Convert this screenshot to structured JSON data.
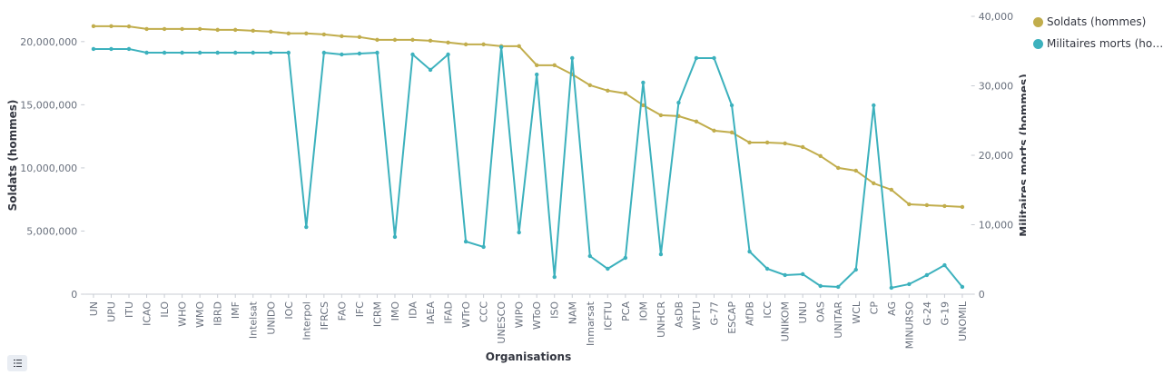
{
  "chart_data": {
    "type": "line",
    "x_label": "Organisations",
    "y_label": "Soldats (hommes)",
    "y2_label": "Militaires morts (hommes)",
    "categories": [
      "UN",
      "UPU",
      "ITU",
      "ICAO",
      "ILO",
      "WHO",
      "WMO",
      "IBRD",
      "IMF",
      "Intelsat",
      "UNIDO",
      "IOC",
      "Interpol",
      "IFRCS",
      "FAO",
      "IFC",
      "ICRM",
      "IMO",
      "IDA",
      "IAEA",
      "IFAD",
      "WTrO",
      "CCC",
      "UNESCO",
      "WIPO",
      "WToO",
      "ISO",
      "NAM",
      "Inmarsat",
      "ICFTU",
      "PCA",
      "IOM",
      "UNHCR",
      "AsDB",
      "WFTU",
      "G-77",
      "ESCAP",
      "AfDB",
      "ICC",
      "UNIKOM",
      "UNU",
      "OAS",
      "UNITAR",
      "WCL",
      "CP",
      "AG",
      "MINURSO",
      "G-24",
      "G-19",
      "UNOMIL"
    ],
    "series": [
      {
        "name": "Soldats (hommes)",
        "color": "#c1ad4c",
        "axis": "y",
        "values": [
          21220000,
          21220000,
          21200000,
          21000000,
          21000000,
          21000000,
          21000000,
          20930000,
          20930000,
          20860000,
          20790000,
          20650000,
          20650000,
          20570000,
          20430000,
          20360000,
          20140000,
          20140000,
          20140000,
          20070000,
          19930000,
          19780000,
          19780000,
          19640000,
          19640000,
          18130000,
          18130000,
          17410000,
          16550000,
          16120000,
          15900000,
          14960000,
          14170000,
          14100000,
          13670000,
          12950000,
          12810000,
          12010000,
          12010000,
          11940000,
          11650000,
          10940000,
          10000000,
          9780000,
          8780000,
          8270000,
          7120000,
          7050000,
          6980000,
          6910000
        ]
      },
      {
        "name": "Militaires morts (hommes)",
        "color": "#3cb1bd",
        "axis": "y2",
        "values": [
          35300,
          35300,
          35300,
          34770,
          34770,
          34770,
          34770,
          34770,
          34770,
          34770,
          34770,
          34770,
          9670,
          34770,
          34510,
          34640,
          34770,
          8240,
          34510,
          32290,
          34510,
          7580,
          6800,
          35560,
          8890,
          31630,
          2480,
          33990,
          5490,
          3660,
          5230,
          30460,
          5750,
          27580,
          33990,
          33990,
          27190,
          6140,
          3660,
          2750,
          2880,
          1180,
          1050,
          3530,
          27190,
          920,
          1440,
          2750,
          4180,
          1050
        ]
      }
    ],
    "ylim": [
      0,
      22000000
    ],
    "yticks": [
      0,
      {
        "value": 5000000,
        "label": "5,000,000"
      },
      {
        "value": 10000000,
        "label": "10,000,000"
      },
      {
        "value": 15000000,
        "label": "15,000,000"
      },
      {
        "value": 20000000,
        "label": "20,000,000"
      }
    ],
    "y2lim": [
      0,
      40000
    ],
    "y2ticks": [
      0,
      {
        "value": 10000,
        "label": "10,000"
      },
      {
        "value": 20000,
        "label": "20,000"
      },
      {
        "value": 30000,
        "label": "30,000"
      },
      {
        "value": 40000,
        "label": "40,000"
      }
    ],
    "legend": "right"
  }
}
